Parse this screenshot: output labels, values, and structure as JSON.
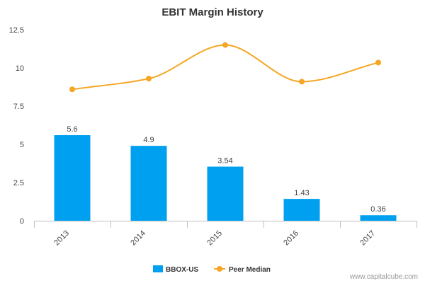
{
  "chart_data": {
    "type": "bar",
    "title": "EBIT Margin History",
    "categories": [
      "2013",
      "2014",
      "2015",
      "2016",
      "2017"
    ],
    "ylim": [
      0,
      12.5
    ],
    "yticks": [
      "0",
      "2.5",
      "5",
      "7.5",
      "10",
      "12.5"
    ],
    "grid": false,
    "legend_position": "bottom-center",
    "series": [
      {
        "name": "BBOX-US",
        "type": "bar",
        "color": "#00a0f0",
        "values": [
          5.6,
          4.9,
          3.54,
          1.43,
          0.36
        ],
        "labels": [
          "5.6",
          "4.9",
          "3.54",
          "1.43",
          "0.36"
        ]
      },
      {
        "name": "Peer Median",
        "type": "line",
        "smooth": true,
        "color": "#f5a623",
        "values": [
          8.6,
          9.3,
          11.5,
          9.1,
          10.35
        ]
      }
    ]
  },
  "credit": "www.capitalcube.com"
}
